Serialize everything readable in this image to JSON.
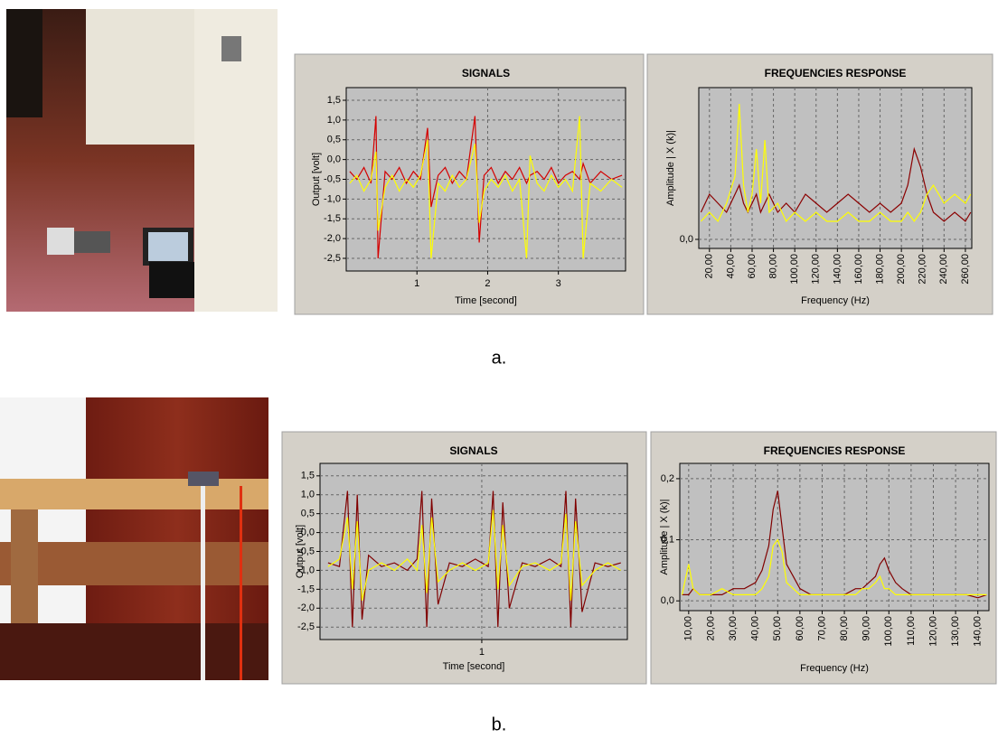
{
  "captions": [
    "a.",
    "b."
  ],
  "chart_data": [
    {
      "type": "line",
      "title": "SIGNALS",
      "xlabel": "Time [second]",
      "ylabel": "Output [volt]",
      "x": [
        0.05,
        0.15,
        0.25,
        0.35,
        0.42,
        0.45,
        0.55,
        0.65,
        0.75,
        0.85,
        0.95,
        1.05,
        1.15,
        1.2,
        1.3,
        1.4,
        1.5,
        1.6,
        1.7,
        1.82,
        1.88,
        1.95,
        2.05,
        2.15,
        2.25,
        2.35,
        2.45,
        2.55,
        2.6,
        2.7,
        2.8,
        2.9,
        3.0,
        3.1,
        3.2,
        3.3,
        3.35,
        3.45,
        3.6,
        3.75,
        3.9
      ],
      "series": [
        {
          "color": "#d40000",
          "values": [
            -0.3,
            -0.5,
            -0.2,
            -0.6,
            1.1,
            -2.5,
            -0.3,
            -0.5,
            -0.2,
            -0.6,
            -0.3,
            -0.5,
            0.8,
            -1.2,
            -0.4,
            -0.2,
            -0.6,
            -0.3,
            -0.5,
            1.1,
            -2.1,
            -0.4,
            -0.2,
            -0.6,
            -0.3,
            -0.5,
            -0.2,
            -0.6,
            -0.4,
            -0.3,
            -0.5,
            -0.2,
            -0.6,
            -0.4,
            -0.3,
            -0.5,
            -0.1,
            -0.6,
            -0.3,
            -0.5,
            -0.4
          ]
        },
        {
          "color": "#ffff00",
          "values": [
            -0.6,
            -0.4,
            -0.8,
            -0.5,
            0.2,
            -1.8,
            -0.7,
            -0.4,
            -0.8,
            -0.5,
            -0.7,
            -0.4,
            0.5,
            -2.5,
            -0.6,
            -0.8,
            -0.4,
            -0.7,
            -0.5,
            0.4,
            -1.6,
            -0.8,
            -0.5,
            -0.7,
            -0.4,
            -0.8,
            -0.5,
            -2.5,
            0.1,
            -0.6,
            -0.8,
            -0.4,
            -0.7,
            -0.5,
            -0.8,
            1.1,
            -2.5,
            -0.6,
            -0.8,
            -0.5,
            -0.7
          ]
        }
      ],
      "xlim": [
        0,
        3.95
      ],
      "ylim": [
        -2.82,
        1.82
      ],
      "xticks": [
        1,
        2,
        3
      ],
      "yticks": [
        {
          "value": 1.5,
          "label": "1,5"
        },
        {
          "value": 1.0,
          "label": "1,0"
        },
        {
          "value": 0.5,
          "label": "0,5"
        },
        {
          "value": 0.0,
          "label": "0,0"
        },
        {
          "value": -0.5,
          "label": "-0,5"
        },
        {
          "value": -1.0,
          "label": "-1,0"
        },
        {
          "value": -1.5,
          "label": "-1,5"
        },
        {
          "value": -2.0,
          "label": "-2,0"
        },
        {
          "value": -2.5,
          "label": "-2,5"
        }
      ],
      "grid": true
    },
    {
      "type": "line",
      "title": "FREQUENCIES RESPONSE",
      "xlabel": "Frequency (Hz)",
      "ylabel": "Amplitude | X (k)|",
      "x": [
        12,
        20,
        28,
        36,
        44,
        48,
        52,
        56,
        60,
        64,
        68,
        72,
        76,
        84,
        92,
        100,
        110,
        120,
        130,
        140,
        150,
        160,
        170,
        180,
        190,
        200,
        206,
        212,
        218,
        224,
        230,
        240,
        250,
        260,
        265
      ],
      "series": [
        {
          "color": "#8b0000",
          "values": [
            0.03,
            0.05,
            0.04,
            0.03,
            0.05,
            0.06,
            0.04,
            0.03,
            0.04,
            0.05,
            0.03,
            0.04,
            0.05,
            0.03,
            0.04,
            0.03,
            0.05,
            0.04,
            0.03,
            0.04,
            0.05,
            0.04,
            0.03,
            0.04,
            0.03,
            0.04,
            0.06,
            0.1,
            0.08,
            0.05,
            0.03,
            0.02,
            0.03,
            0.02,
            0.03
          ]
        },
        {
          "color": "#ffff00",
          "values": [
            0.02,
            0.03,
            0.02,
            0.04,
            0.07,
            0.15,
            0.06,
            0.03,
            0.05,
            0.1,
            0.04,
            0.11,
            0.03,
            0.04,
            0.02,
            0.03,
            0.02,
            0.03,
            0.02,
            0.02,
            0.03,
            0.02,
            0.02,
            0.03,
            0.02,
            0.02,
            0.03,
            0.02,
            0.03,
            0.05,
            0.06,
            0.04,
            0.05,
            0.04,
            0.05
          ]
        }
      ],
      "xlim": [
        10,
        266
      ],
      "ylim": [
        -0.01,
        0.168
      ],
      "xticks": [
        {
          "value": 20,
          "label": "20,00"
        },
        {
          "value": 40,
          "label": "40,00"
        },
        {
          "value": 60,
          "label": "60,00"
        },
        {
          "value": 80,
          "label": "80,00"
        },
        {
          "value": 100,
          "label": "100,00"
        },
        {
          "value": 120,
          "label": "120,00"
        },
        {
          "value": 140,
          "label": "140,00"
        },
        {
          "value": 160,
          "label": "160,00"
        },
        {
          "value": 180,
          "label": "180,00"
        },
        {
          "value": 200,
          "label": "200,00"
        },
        {
          "value": 220,
          "label": "220,00"
        },
        {
          "value": 240,
          "label": "240,00"
        },
        {
          "value": 260,
          "label": "260,00"
        }
      ],
      "yticks": [
        {
          "value": 0,
          "label": "0,0"
        }
      ],
      "grid": true
    },
    {
      "type": "line",
      "title": "SIGNALS",
      "xlabel": "Time [second]",
      "ylabel": "Output [volt]",
      "x": [
        0.05,
        0.12,
        0.17,
        0.2,
        0.23,
        0.26,
        0.3,
        0.38,
        0.46,
        0.54,
        0.6,
        0.63,
        0.66,
        0.69,
        0.73,
        0.8,
        0.88,
        0.96,
        1.04,
        1.07,
        1.1,
        1.13,
        1.17,
        1.25,
        1.33,
        1.42,
        1.49,
        1.52,
        1.55,
        1.58,
        1.62,
        1.7,
        1.78,
        1.86
      ],
      "series": [
        {
          "color": "#800000",
          "values": [
            -0.8,
            -0.9,
            1.1,
            -2.5,
            1.0,
            -2.3,
            -0.6,
            -0.9,
            -0.8,
            -1.0,
            -0.7,
            1.1,
            -2.5,
            0.9,
            -1.9,
            -0.8,
            -0.9,
            -0.7,
            -0.9,
            1.1,
            -2.5,
            0.8,
            -2.0,
            -0.8,
            -0.9,
            -0.7,
            -0.9,
            1.1,
            -2.5,
            0.9,
            -2.1,
            -0.8,
            -0.9,
            -0.8
          ]
        },
        {
          "color": "#ffff00",
          "values": [
            -0.9,
            -0.7,
            0.4,
            -1.5,
            0.3,
            -1.8,
            -1.0,
            -0.8,
            -1.0,
            -0.7,
            -1.0,
            0.2,
            -1.6,
            0.4,
            -1.3,
            -1.0,
            -0.8,
            -1.0,
            -0.8,
            0.6,
            -1.5,
            0.2,
            -1.4,
            -0.9,
            -0.8,
            -1.0,
            -0.8,
            0.5,
            -1.8,
            0.3,
            -1.4,
            -1.0,
            -0.8,
            -1.0
          ]
        }
      ],
      "xlim": [
        0,
        1.9
      ],
      "ylim": [
        -2.83,
        1.83
      ],
      "xticks": [
        1
      ],
      "yticks": [
        {
          "value": 1.5,
          "label": "1,5"
        },
        {
          "value": 1.0,
          "label": "1,0"
        },
        {
          "value": 0.5,
          "label": "0,5"
        },
        {
          "value": 0.0,
          "label": "0,0"
        },
        {
          "value": -0.5,
          "label": "-0,5"
        },
        {
          "value": -1.0,
          "label": "-1,0"
        },
        {
          "value": -1.5,
          "label": "-1,5"
        },
        {
          "value": -2.0,
          "label": "-2,0"
        },
        {
          "value": -2.5,
          "label": "-2,5"
        }
      ],
      "grid": true
    },
    {
      "type": "line",
      "title": "FREQUENCIES RESPONSE",
      "xlabel": "Frequency (Hz)",
      "ylabel": "Amplitude | X (k)|",
      "x": [
        7,
        10,
        12,
        15,
        20,
        25,
        30,
        35,
        40,
        43,
        46,
        48,
        50,
        52,
        54,
        57,
        60,
        65,
        70,
        75,
        80,
        85,
        88,
        91,
        94,
        96,
        98,
        100,
        103,
        106,
        110,
        115,
        120,
        125,
        130,
        135,
        140,
        144
      ],
      "series": [
        {
          "color": "#800000",
          "values": [
            0.01,
            0.01,
            0.02,
            0.01,
            0.01,
            0.01,
            0.02,
            0.02,
            0.03,
            0.05,
            0.09,
            0.15,
            0.18,
            0.12,
            0.06,
            0.04,
            0.02,
            0.01,
            0.01,
            0.01,
            0.01,
            0.02,
            0.02,
            0.03,
            0.04,
            0.06,
            0.07,
            0.05,
            0.03,
            0.02,
            0.01,
            0.01,
            0.01,
            0.01,
            0.01,
            0.01,
            0.005,
            0.01
          ]
        },
        {
          "color": "#ffff00",
          "values": [
            0.01,
            0.06,
            0.02,
            0.01,
            0.01,
            0.02,
            0.01,
            0.01,
            0.01,
            0.02,
            0.04,
            0.09,
            0.1,
            0.08,
            0.03,
            0.02,
            0.01,
            0.01,
            0.01,
            0.01,
            0.01,
            0.01,
            0.02,
            0.02,
            0.03,
            0.04,
            0.02,
            0.02,
            0.01,
            0.01,
            0.01,
            0.01,
            0.01,
            0.01,
            0.01,
            0.01,
            0.01,
            0.01
          ]
        }
      ],
      "xlim": [
        6,
        145
      ],
      "ylim": [
        -0.016,
        0.225
      ],
      "xticks": [
        {
          "value": 10,
          "label": "10,00"
        },
        {
          "value": 20,
          "label": "20,00"
        },
        {
          "value": 30,
          "label": "30,00"
        },
        {
          "value": 40,
          "label": "40,00"
        },
        {
          "value": 50,
          "label": "50,00"
        },
        {
          "value": 60,
          "label": "60,00"
        },
        {
          "value": 70,
          "label": "70,00"
        },
        {
          "value": 80,
          "label": "80,00"
        },
        {
          "value": 90,
          "label": "90,00"
        },
        {
          "value": 100,
          "label": "100,00"
        },
        {
          "value": 110,
          "label": "110,00"
        },
        {
          "value": 120,
          "label": "120,00"
        },
        {
          "value": 130,
          "label": "130,00"
        },
        {
          "value": 140,
          "label": "140,00"
        }
      ],
      "yticks": [
        {
          "value": 0,
          "label": "0,0"
        },
        {
          "value": 0.1,
          "label": "0,1"
        },
        {
          "value": 0.2,
          "label": "0,2"
        }
      ],
      "grid": true
    }
  ]
}
